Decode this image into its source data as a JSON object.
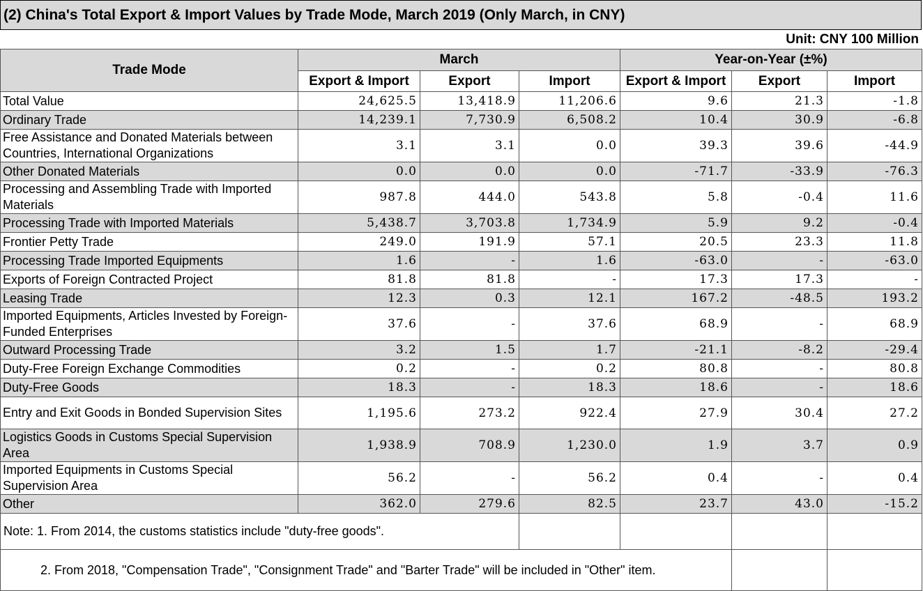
{
  "title": "(2) China's Total Export & Import Values by Trade Mode, March 2019 (Only March, in CNY)",
  "unit": "Unit: CNY 100 Million",
  "header": {
    "trade_mode": "Trade Mode",
    "group_march": "March",
    "group_yoy": "Year-on-Year (±%)",
    "cols": [
      "Export & Import",
      "Export",
      "Import",
      "Export & Import",
      "Export",
      "Import"
    ]
  },
  "rows": [
    {
      "name": "Total Value",
      "values": [
        "24,625.5",
        "13,418.9",
        "11,206.6",
        "9.6",
        "21.3",
        "-1.8"
      ]
    },
    {
      "name": "Ordinary Trade",
      "values": [
        "14,239.1",
        "7,730.9",
        "6,508.2",
        "10.4",
        "30.9",
        "-6.8"
      ]
    },
    {
      "name": "Free Assistance and Donated Materials between Countries, International Organizations",
      "values": [
        "3.1",
        "3.1",
        "0.0",
        "39.3",
        "39.6",
        "-44.9"
      ]
    },
    {
      "name": "Other Donated Materials",
      "values": [
        "0.0",
        "0.0",
        "0.0",
        "-71.7",
        "-33.9",
        "-76.3"
      ]
    },
    {
      "name": "Processing and Assembling Trade with Imported Materials",
      "values": [
        "987.8",
        "444.0",
        "543.8",
        "5.8",
        "-0.4",
        "11.6"
      ]
    },
    {
      "name": "Processing Trade with Imported Materials",
      "values": [
        "5,438.7",
        "3,703.8",
        "1,734.9",
        "5.9",
        "9.2",
        "-0.4"
      ]
    },
    {
      "name": "Frontier Petty Trade",
      "values": [
        "249.0",
        "191.9",
        "57.1",
        "20.5",
        "23.3",
        "11.8"
      ]
    },
    {
      "name": "Processing Trade Imported Equipments",
      "values": [
        "1.6",
        "-",
        "1.6",
        "-63.0",
        "-",
        "-63.0"
      ]
    },
    {
      "name": "Exports of Foreign Contracted Project",
      "values": [
        "81.8",
        "81.8",
        "-",
        "17.3",
        "17.3",
        "-"
      ]
    },
    {
      "name": "Leasing Trade",
      "values": [
        "12.3",
        "0.3",
        "12.1",
        "167.2",
        "-48.5",
        "193.2"
      ]
    },
    {
      "name": "Imported Equipments, Articles Invested by Foreign-Funded Enterprises",
      "values": [
        "37.6",
        "-",
        "37.6",
        "68.9",
        "-",
        "68.9"
      ]
    },
    {
      "name": "Outward Processing Trade",
      "values": [
        "3.2",
        "1.5",
        "1.7",
        "-21.1",
        "-8.2",
        "-29.4"
      ]
    },
    {
      "name": "Duty-Free Foreign Exchange Commodities",
      "values": [
        "0.2",
        "-",
        "0.2",
        "80.8",
        "-",
        "80.8"
      ]
    },
    {
      "name": "Duty-Free Goods",
      "values": [
        "18.3",
        "-",
        "18.3",
        "18.6",
        "-",
        "18.6"
      ]
    },
    {
      "name": "Entry and Exit Goods in Bonded Supervision Sites",
      "values": [
        "1,195.6",
        "273.2",
        "922.4",
        "27.9",
        "30.4",
        "27.2"
      ]
    },
    {
      "name": "Logistics Goods in Customs Special Supervision Area",
      "values": [
        "1,938.9",
        "708.9",
        "1,230.0",
        "1.9",
        "3.7",
        "0.9"
      ]
    },
    {
      "name": "Imported Equipments in Customs Special Supervision Area",
      "values": [
        "56.2",
        "-",
        "56.2",
        "0.4",
        "-",
        "0.4"
      ]
    },
    {
      "name": "Other",
      "values": [
        "362.0",
        "279.6",
        "82.5",
        "23.7",
        "43.0",
        "-15.2"
      ]
    }
  ],
  "notes": [
    "Note: 1. From 2014, the customs statistics include \"duty-free goods\".",
    "2. From 2018, \"Compensation Trade\", \"Consignment Trade\" and \"Barter Trade\" will be included in \"Other\" item."
  ]
}
